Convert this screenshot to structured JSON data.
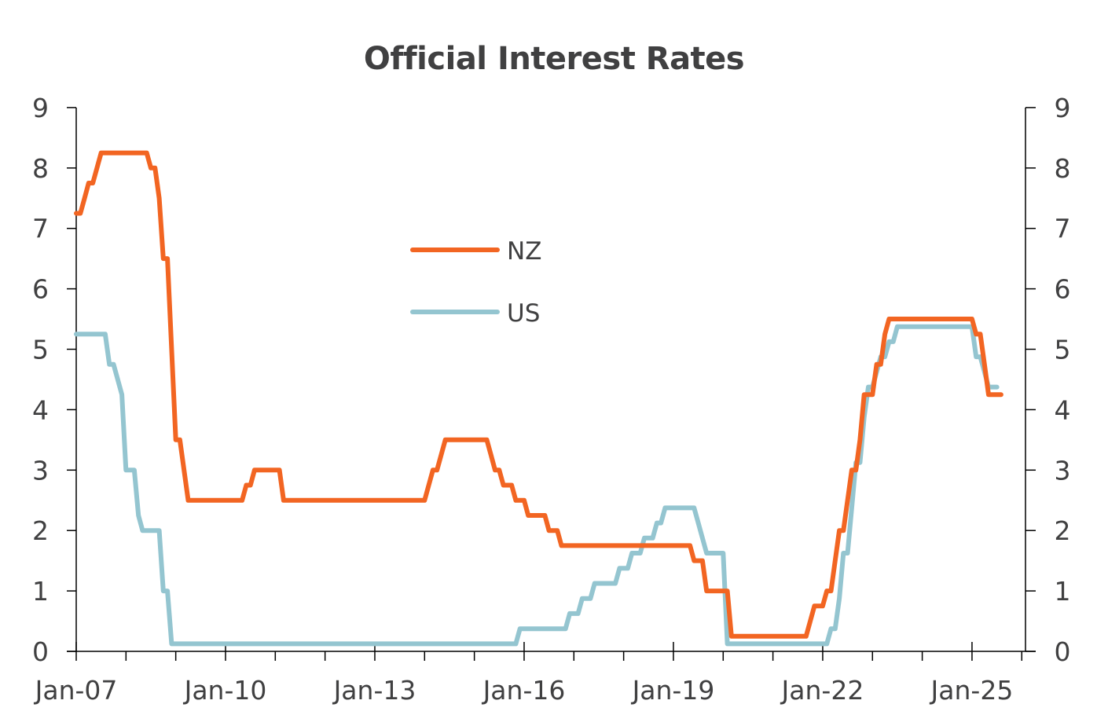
{
  "chart_data": {
    "type": "line",
    "title": "Official Interest Rates",
    "xlabel": "",
    "ylabel": "",
    "ylim": [
      0,
      9
    ],
    "y_ticks": [
      0,
      1,
      2,
      3,
      4,
      5,
      6,
      7,
      8,
      9
    ],
    "y_ticks_right": [
      0,
      1,
      2,
      3,
      4,
      5,
      6,
      7,
      8,
      9
    ],
    "x_tick_labels": [
      "Jan-07",
      "Jan-10",
      "Jan-13",
      "Jan-16",
      "Jan-19",
      "Jan-22",
      "Jan-25"
    ],
    "x_start": "2007-01",
    "x_frequency": "monthly",
    "grid": false,
    "legend_position": "inside-center-left",
    "series": [
      {
        "name": "NZ",
        "color": "#F26522",
        "start": "2007-01",
        "values": [
          7.25,
          7.25,
          7.5,
          7.75,
          7.75,
          8.0,
          8.25,
          8.25,
          8.25,
          8.25,
          8.25,
          8.25,
          8.25,
          8.25,
          8.25,
          8.25,
          8.25,
          8.25,
          8.0,
          8.0,
          7.5,
          6.5,
          6.5,
          5.0,
          3.5,
          3.5,
          3.0,
          2.5,
          2.5,
          2.5,
          2.5,
          2.5,
          2.5,
          2.5,
          2.5,
          2.5,
          2.5,
          2.5,
          2.5,
          2.5,
          2.5,
          2.75,
          2.75,
          3.0,
          3.0,
          3.0,
          3.0,
          3.0,
          3.0,
          3.0,
          2.5,
          2.5,
          2.5,
          2.5,
          2.5,
          2.5,
          2.5,
          2.5,
          2.5,
          2.5,
          2.5,
          2.5,
          2.5,
          2.5,
          2.5,
          2.5,
          2.5,
          2.5,
          2.5,
          2.5,
          2.5,
          2.5,
          2.5,
          2.5,
          2.5,
          2.5,
          2.5,
          2.5,
          2.5,
          2.5,
          2.5,
          2.5,
          2.5,
          2.5,
          2.5,
          2.75,
          3.0,
          3.0,
          3.25,
          3.5,
          3.5,
          3.5,
          3.5,
          3.5,
          3.5,
          3.5,
          3.5,
          3.5,
          3.5,
          3.5,
          3.25,
          3.0,
          3.0,
          2.75,
          2.75,
          2.75,
          2.5,
          2.5,
          2.5,
          2.25,
          2.25,
          2.25,
          2.25,
          2.25,
          2.0,
          2.0,
          2.0,
          1.75,
          1.75,
          1.75,
          1.75,
          1.75,
          1.75,
          1.75,
          1.75,
          1.75,
          1.75,
          1.75,
          1.75,
          1.75,
          1.75,
          1.75,
          1.75,
          1.75,
          1.75,
          1.75,
          1.75,
          1.75,
          1.75,
          1.75,
          1.75,
          1.75,
          1.75,
          1.75,
          1.75,
          1.75,
          1.75,
          1.75,
          1.75,
          1.5,
          1.5,
          1.5,
          1.0,
          1.0,
          1.0,
          1.0,
          1.0,
          1.0,
          0.25,
          0.25,
          0.25,
          0.25,
          0.25,
          0.25,
          0.25,
          0.25,
          0.25,
          0.25,
          0.25,
          0.25,
          0.25,
          0.25,
          0.25,
          0.25,
          0.25,
          0.25,
          0.25,
          0.5,
          0.75,
          0.75,
          0.75,
          1.0,
          1.0,
          1.5,
          2.0,
          2.0,
          2.5,
          3.0,
          3.0,
          3.5,
          4.25,
          4.25,
          4.25,
          4.75,
          4.75,
          5.25,
          5.5,
          5.5,
          5.5,
          5.5,
          5.5,
          5.5,
          5.5,
          5.5,
          5.5,
          5.5,
          5.5,
          5.5,
          5.5,
          5.5,
          5.5,
          5.5,
          5.5,
          5.5,
          5.5,
          5.5,
          5.5,
          5.25,
          5.25,
          4.75,
          4.25,
          4.25,
          4.25,
          4.25
        ]
      },
      {
        "name": "US",
        "color": "#94C5D0",
        "start": "2007-01",
        "values": [
          5.25,
          5.25,
          5.25,
          5.25,
          5.25,
          5.25,
          5.25,
          5.25,
          4.75,
          4.75,
          4.5,
          4.25,
          3.0,
          3.0,
          3.0,
          2.25,
          2.0,
          2.0,
          2.0,
          2.0,
          2.0,
          1.0,
          1.0,
          0.125,
          0.125,
          0.125,
          0.125,
          0.125,
          0.125,
          0.125,
          0.125,
          0.125,
          0.125,
          0.125,
          0.125,
          0.125,
          0.125,
          0.125,
          0.125,
          0.125,
          0.125,
          0.125,
          0.125,
          0.125,
          0.125,
          0.125,
          0.125,
          0.125,
          0.125,
          0.125,
          0.125,
          0.125,
          0.125,
          0.125,
          0.125,
          0.125,
          0.125,
          0.125,
          0.125,
          0.125,
          0.125,
          0.125,
          0.125,
          0.125,
          0.125,
          0.125,
          0.125,
          0.125,
          0.125,
          0.125,
          0.125,
          0.125,
          0.125,
          0.125,
          0.125,
          0.125,
          0.125,
          0.125,
          0.125,
          0.125,
          0.125,
          0.125,
          0.125,
          0.125,
          0.125,
          0.125,
          0.125,
          0.125,
          0.125,
          0.125,
          0.125,
          0.125,
          0.125,
          0.125,
          0.125,
          0.125,
          0.125,
          0.125,
          0.125,
          0.125,
          0.125,
          0.125,
          0.125,
          0.125,
          0.125,
          0.125,
          0.125,
          0.375,
          0.375,
          0.375,
          0.375,
          0.375,
          0.375,
          0.375,
          0.375,
          0.375,
          0.375,
          0.375,
          0.375,
          0.625,
          0.625,
          0.625,
          0.875,
          0.875,
          0.875,
          1.125,
          1.125,
          1.125,
          1.125,
          1.125,
          1.125,
          1.375,
          1.375,
          1.375,
          1.625,
          1.625,
          1.625,
          1.875,
          1.875,
          1.875,
          2.125,
          2.125,
          2.375,
          2.375,
          2.375,
          2.375,
          2.375,
          2.375,
          2.375,
          2.375,
          2.125,
          1.875,
          1.625,
          1.625,
          1.625,
          1.625,
          1.625,
          0.125,
          0.125,
          0.125,
          0.125,
          0.125,
          0.125,
          0.125,
          0.125,
          0.125,
          0.125,
          0.125,
          0.125,
          0.125,
          0.125,
          0.125,
          0.125,
          0.125,
          0.125,
          0.125,
          0.125,
          0.125,
          0.125,
          0.125,
          0.125,
          0.125,
          0.375,
          0.375,
          0.875,
          1.625,
          1.625,
          2.375,
          3.125,
          3.125,
          3.875,
          4.375,
          4.375,
          4.625,
          4.875,
          4.875,
          5.125,
          5.125,
          5.375,
          5.375,
          5.375,
          5.375,
          5.375,
          5.375,
          5.375,
          5.375,
          5.375,
          5.375,
          5.375,
          5.375,
          5.375,
          5.375,
          5.375,
          5.375,
          5.375,
          5.375,
          5.375,
          4.875,
          4.875,
          4.625,
          4.375,
          4.375,
          4.375
        ]
      }
    ]
  },
  "legend": {
    "items": [
      {
        "label": "NZ",
        "color": "#F26522"
      },
      {
        "label": "US",
        "color": "#94C5D0"
      }
    ]
  }
}
